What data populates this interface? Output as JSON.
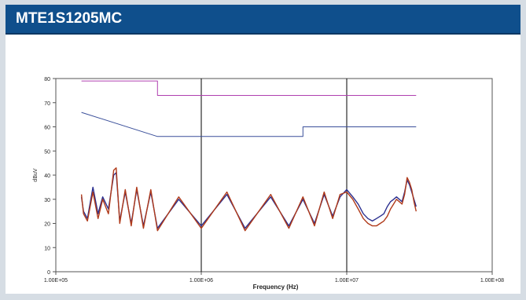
{
  "header": {
    "title": "MTE1S1205MC"
  },
  "chart_data": {
    "type": "line",
    "title": "",
    "xlabel": "Frequency (Hz)",
    "ylabel": "dBuV",
    "xscale": "log",
    "xlim": [
      100000,
      100000000
    ],
    "ylim": [
      0,
      80
    ],
    "grid": "vertical decades",
    "x_ticks": [
      "1.00E+05",
      "1.00E+06",
      "1.00E+07",
      "1.00E+08"
    ],
    "y_ticks": [
      "0",
      "10",
      "20",
      "30",
      "40",
      "50",
      "60",
      "70",
      "80"
    ],
    "colors": {
      "limit_qp": "#b040b0",
      "limit_avg": "#3a4f9a",
      "trace_a": "#2b2f8f",
      "trace_b": "#b03a1a"
    },
    "series": [
      {
        "key": "limit_qp",
        "x": [
          150000,
          500000,
          500000,
          30000000
        ],
        "y": [
          79,
          79,
          73,
          73
        ]
      },
      {
        "key": "limit_avg",
        "x": [
          150000,
          500000,
          5000000,
          5000000,
          30000000
        ],
        "y": [
          66,
          56,
          56,
          60,
          60
        ]
      },
      {
        "key": "trace_a",
        "x": [
          150000,
          155000,
          165000,
          180000,
          195000,
          210000,
          230000,
          250000,
          260000,
          275000,
          300000,
          330000,
          360000,
          400000,
          450000,
          500000,
          700000,
          1000000,
          1500000,
          2000000,
          3000000,
          4000000,
          5000000,
          6000000,
          7000000,
          8000000,
          9000000,
          10000000,
          11000000,
          12000000,
          13000000,
          14000000,
          15000000,
          16000000,
          17000000,
          18000000,
          19000000,
          20000000,
          21000000,
          22000000,
          23000000,
          24000000,
          25000000,
          26000000,
          27000000,
          28000000,
          29000000,
          30000000
        ],
        "y": [
          31,
          25,
          22,
          35,
          24,
          31,
          26,
          40,
          41,
          21,
          33,
          20,
          34,
          19,
          33,
          18,
          30,
          19,
          32,
          18,
          31,
          19,
          30,
          20,
          32,
          23,
          31,
          34,
          31,
          28,
          24,
          22,
          21,
          22,
          23,
          24,
          27,
          29,
          30,
          31,
          30,
          29,
          33,
          38,
          36,
          33,
          30,
          27
        ]
      },
      {
        "key": "trace_b",
        "x": [
          150000,
          155000,
          165000,
          180000,
          195000,
          210000,
          230000,
          250000,
          260000,
          275000,
          300000,
          330000,
          360000,
          400000,
          450000,
          500000,
          700000,
          1000000,
          1500000,
          2000000,
          3000000,
          4000000,
          5000000,
          6000000,
          7000000,
          8000000,
          9000000,
          10000000,
          11000000,
          12000000,
          13000000,
          14000000,
          15000000,
          16000000,
          17000000,
          18000000,
          19000000,
          20000000,
          21000000,
          22000000,
          23000000,
          24000000,
          25000000,
          26000000,
          27000000,
          28000000,
          29000000,
          30000000
        ],
        "y": [
          32,
          24,
          21,
          33,
          22,
          30,
          24,
          42,
          43,
          20,
          34,
          19,
          35,
          18,
          34,
          17,
          31,
          18,
          33,
          17,
          32,
          18,
          31,
          19,
          33,
          22,
          32,
          33,
          30,
          26,
          22,
          20,
          19,
          19,
          20,
          21,
          23,
          26,
          28,
          30,
          29,
          28,
          32,
          39,
          37,
          34,
          29,
          25
        ]
      }
    ]
  }
}
